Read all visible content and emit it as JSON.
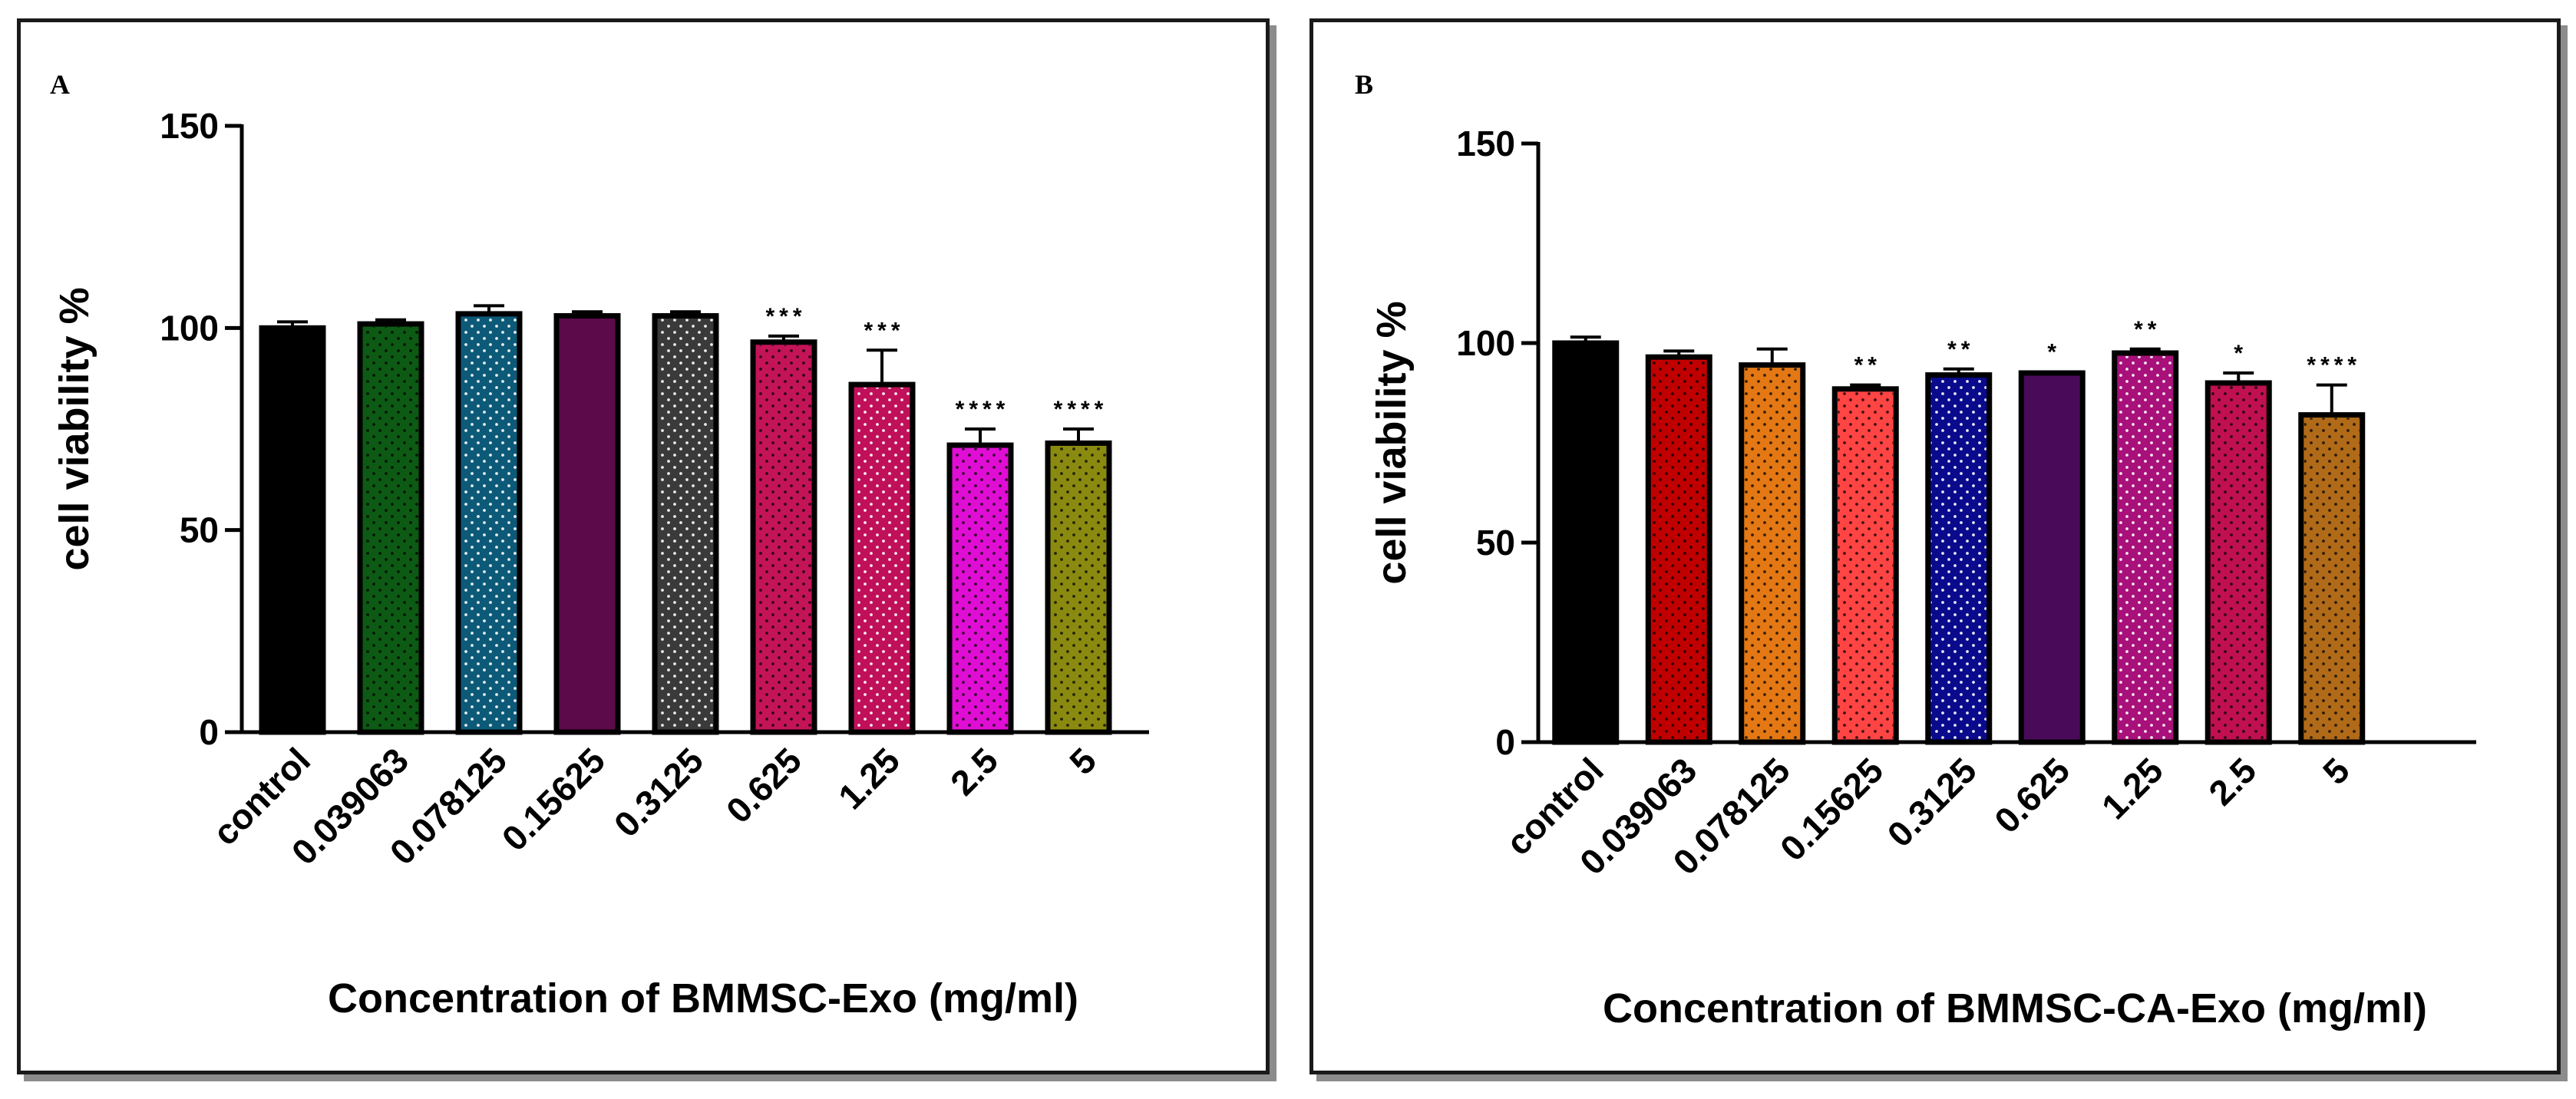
{
  "chart_data": [
    {
      "panel_label": "A",
      "type": "bar",
      "xlabel": "Concentration of  BMMSC-Exo (mg/ml)",
      "ylabel": "cell viability %",
      "ylim": [
        0,
        150
      ],
      "yticks": [
        "0",
        "50",
        "100",
        "150"
      ],
      "categories": [
        "control",
        "0.039063",
        "0.078125",
        "0.15625",
        "0.3125",
        "0.625",
        "1.25",
        "2.5",
        "5"
      ],
      "values": [
        100,
        101,
        103.5,
        103,
        103,
        96.5,
        86,
        71,
        71.5
      ],
      "errors": [
        1.5,
        1,
        2,
        1,
        1,
        1.5,
        8.5,
        4,
        3.5
      ],
      "significance": [
        "",
        "",
        "",
        "",
        "",
        "***",
        "***",
        "****",
        "****"
      ],
      "colors": [
        "#000000",
        "#0d5a14",
        "#0d5a78",
        "#5c0a4a",
        "#3a3a3a",
        "#c41458",
        "#c0105a",
        "#e00ed4",
        "#8a8a10"
      ],
      "pattern": [
        "none",
        "black",
        "white",
        "none",
        "white",
        "black",
        "white",
        "black",
        "black"
      ]
    },
    {
      "panel_label": "B",
      "type": "bar",
      "xlabel": "Concentration of  BMMSC-CA-Exo (mg/ml)",
      "ylabel": "cell viability %",
      "ylim": [
        0,
        150
      ],
      "yticks": [
        "0",
        "50",
        "100",
        "150"
      ],
      "categories": [
        "control",
        "0.039063",
        "0.078125",
        "0.15625",
        "0.3125",
        "0.625",
        "1.25",
        "2.5",
        "5"
      ],
      "values": [
        100,
        96.5,
        94.5,
        88.5,
        92,
        92.5,
        97.5,
        90,
        82
      ],
      "errors": [
        1.5,
        1.5,
        4,
        1,
        1.5,
        0.3,
        1,
        2.5,
        7.5
      ],
      "significance": [
        "",
        "",
        "",
        "**",
        "**",
        "*",
        "**",
        "*",
        "****"
      ],
      "colors": [
        "#000000",
        "#c00000",
        "#e37814",
        "#ff4444",
        "#0a0a8c",
        "#4a0a5a",
        "#a8107a",
        "#c01050",
        "#b06a18"
      ],
      "pattern": [
        "none",
        "black",
        "black",
        "black",
        "white",
        "none",
        "white",
        "black",
        "black"
      ]
    }
  ]
}
